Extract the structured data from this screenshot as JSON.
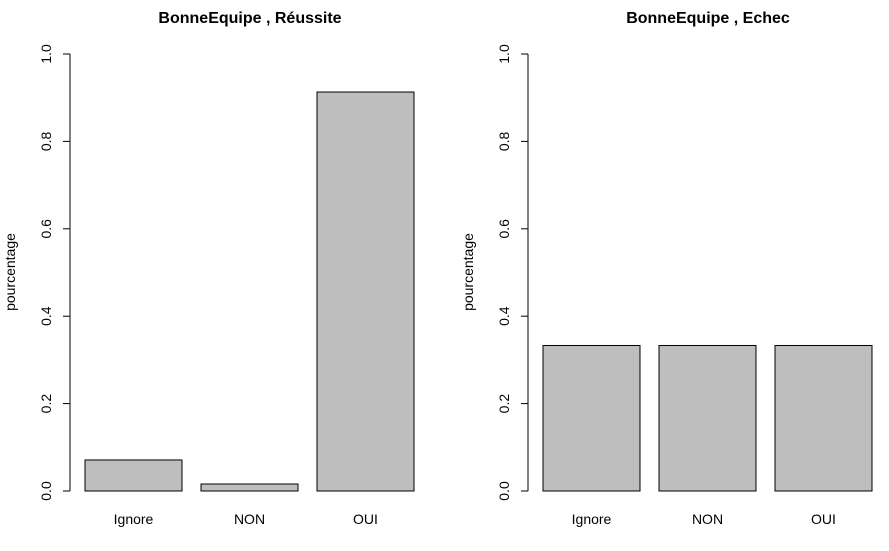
{
  "chart_data": [
    {
      "type": "bar",
      "title": "BonneEquipe , Réussite",
      "xlabel": "",
      "ylabel": "pourcentage",
      "categories": [
        "Ignore",
        "NON",
        "OUI"
      ],
      "values": [
        0.071,
        0.016,
        0.913
      ],
      "ylim": [
        0,
        1
      ],
      "yticks": [
        "0.0",
        "0.2",
        "0.4",
        "0.6",
        "0.8",
        "1.0"
      ],
      "bar_color": "#bebebe",
      "grid": false
    },
    {
      "type": "bar",
      "title": "BonneEquipe , Echec",
      "xlabel": "",
      "ylabel": "pourcentage",
      "categories": [
        "Ignore",
        "NON",
        "OUI"
      ],
      "values": [
        0.333,
        0.333,
        0.333
      ],
      "ylim": [
        0,
        1
      ],
      "yticks": [
        "0.0",
        "0.2",
        "0.4",
        "0.6",
        "0.8",
        "1.0"
      ],
      "bar_color": "#bebebe",
      "grid": false
    }
  ]
}
